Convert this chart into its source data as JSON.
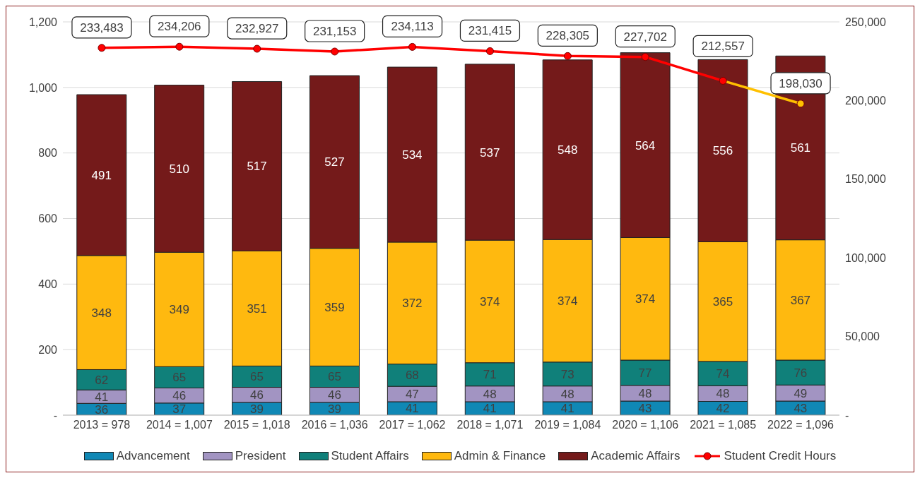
{
  "chart_data": {
    "type": "bar",
    "stacked": true,
    "categories": [
      "2013 = 978",
      "2014 = 1,007",
      "2015 = 1,018",
      "2016 = 1,036",
      "2017 = 1,062",
      "2018 = 1,071",
      "2019 = 1,084",
      "2020 = 1,106",
      "2021 = 1,085",
      "2022 = 1,096"
    ],
    "series": [
      {
        "name": "Advancement",
        "color": "#1088b5",
        "values": [
          36,
          37,
          39,
          39,
          41,
          41,
          41,
          43,
          42,
          43
        ]
      },
      {
        "name": "President",
        "color": "#a294c2",
        "values": [
          41,
          46,
          46,
          46,
          47,
          48,
          48,
          48,
          48,
          49
        ]
      },
      {
        "name": "Student Affairs",
        "color": "#10807a",
        "values": [
          62,
          65,
          65,
          65,
          68,
          71,
          73,
          77,
          74,
          76
        ]
      },
      {
        "name": "Admin & Finance",
        "color": "#ffb90f",
        "values": [
          348,
          349,
          351,
          359,
          372,
          374,
          374,
          374,
          365,
          367
        ]
      },
      {
        "name": "Academic Affairs",
        "color": "#741a1a",
        "values": [
          491,
          510,
          517,
          527,
          534,
          537,
          548,
          564,
          556,
          561
        ]
      },
      {
        "name": "Student Credit Hours",
        "type": "line",
        "axis": "y2",
        "marker": "circle",
        "color": "#ff0000",
        "colors": [
          "#ff0000",
          "#ff0000",
          "#ff0000",
          "#ff0000",
          "#ff0000",
          "#ff0000",
          "#ff0000",
          "#ff0000",
          "#ff0000",
          "#ffc000"
        ],
        "values": [
          233483,
          234206,
          232927,
          231153,
          234113,
          231415,
          228305,
          227702,
          212557,
          198030
        ],
        "value_labels": [
          "233,483",
          "234,206",
          "232,927",
          "231,153",
          "234,113",
          "231,415",
          "228,305",
          "227,702",
          "212,557",
          "198,030"
        ]
      }
    ],
    "ylim": [
      0,
      1200
    ],
    "yticks": [
      {
        "value": 0,
        "label": "-"
      },
      200,
      400,
      600,
      800,
      {
        "value": 1000,
        "label": "1,000"
      },
      {
        "value": 1200,
        "label": "1,200"
      }
    ],
    "y2lim": [
      0,
      250000
    ],
    "y2ticks": [
      {
        "value": 0,
        "label": "-"
      },
      {
        "value": 50000,
        "label": "50,000"
      },
      {
        "value": 100000,
        "label": "100,000"
      },
      {
        "value": 150000,
        "label": "150,000"
      },
      {
        "value": 200000,
        "label": "200,000"
      },
      {
        "value": 250000,
        "label": "250,000"
      }
    ],
    "grid": "y",
    "legend": "bottom",
    "data_labels": true
  }
}
